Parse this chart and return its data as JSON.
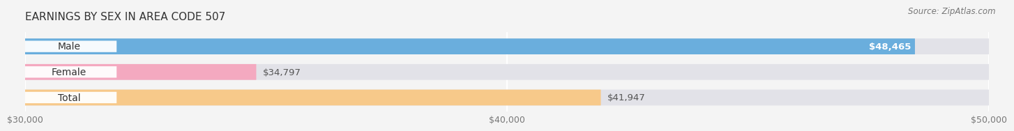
{
  "title": "EARNINGS BY SEX IN AREA CODE 507",
  "source": "Source: ZipAtlas.com",
  "categories": [
    "Male",
    "Female",
    "Total"
  ],
  "values": [
    48465,
    34797,
    41947
  ],
  "xmin": 30000,
  "xmax": 50000,
  "xticks": [
    30000,
    40000,
    50000
  ],
  "xtick_labels": [
    "$30,000",
    "$40,000",
    "$50,000"
  ],
  "bar_colors": [
    "#6aaedd",
    "#f4a9c0",
    "#f7c98a"
  ],
  "value_labels": [
    "$48,465",
    "$34,797",
    "$41,947"
  ],
  "label_inside": [
    true,
    false,
    false
  ],
  "background_color": "#f4f4f4",
  "bar_bg_color": "#e4e4e8",
  "track_color": "#e2e2e8",
  "label_bg": "#ffffff",
  "title_fontsize": 11,
  "axis_fontsize": 9,
  "label_fontsize": 10,
  "value_fontsize": 9.5
}
